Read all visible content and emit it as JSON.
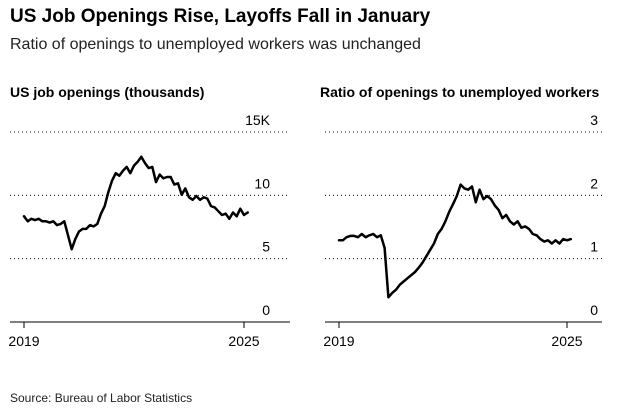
{
  "title": "US Job Openings Rise, Layoffs Fall in January",
  "subtitle": "Ratio of openings to unemployed workers was unchanged",
  "source": "Source: Bureau of Labor Statistics",
  "colors": {
    "line": "#000000",
    "grid": "#000000",
    "axis": "#000000",
    "background": "#ffffff"
  },
  "chart_data": [
    {
      "type": "line",
      "title": "US job openings (thousands)",
      "xlabel": "",
      "ylabel": "",
      "x_tick_labels": [
        "2019",
        "2025"
      ],
      "y_tick_labels": [
        "15K",
        "10",
        "5",
        "0"
      ],
      "y_ticks": [
        15,
        10,
        5,
        0
      ],
      "xlim": [
        2019.0,
        2025.3
      ],
      "ylim": [
        0,
        15
      ],
      "grid": true,
      "series": [
        {
          "values": [
            [
              2019.0,
              7.4
            ],
            [
              2019.1,
              7.0
            ],
            [
              2019.2,
              7.2
            ],
            [
              2019.3,
              7.1
            ],
            [
              2019.4,
              7.2
            ],
            [
              2019.5,
              7.0
            ],
            [
              2019.6,
              7.0
            ],
            [
              2019.7,
              6.9
            ],
            [
              2019.8,
              7.0
            ],
            [
              2019.9,
              6.7
            ],
            [
              2020.0,
              6.8
            ],
            [
              2020.1,
              7.0
            ],
            [
              2020.2,
              5.9
            ],
            [
              2020.3,
              4.8
            ],
            [
              2020.4,
              5.6
            ],
            [
              2020.5,
              6.2
            ],
            [
              2020.6,
              6.4
            ],
            [
              2020.7,
              6.4
            ],
            [
              2020.8,
              6.7
            ],
            [
              2020.9,
              6.6
            ],
            [
              2021.0,
              6.8
            ],
            [
              2021.1,
              7.6
            ],
            [
              2021.2,
              8.2
            ],
            [
              2021.3,
              9.3
            ],
            [
              2021.4,
              10.2
            ],
            [
              2021.5,
              10.8
            ],
            [
              2021.6,
              10.6
            ],
            [
              2021.7,
              11.0
            ],
            [
              2021.8,
              11.3
            ],
            [
              2021.9,
              10.8
            ],
            [
              2022.0,
              11.4
            ],
            [
              2022.1,
              11.7
            ],
            [
              2022.2,
              12.1
            ],
            [
              2022.3,
              11.6
            ],
            [
              2022.4,
              11.2
            ],
            [
              2022.5,
              11.3
            ],
            [
              2022.6,
              10.1
            ],
            [
              2022.7,
              10.7
            ],
            [
              2022.8,
              10.4
            ],
            [
              2022.9,
              10.5
            ],
            [
              2023.0,
              10.5
            ],
            [
              2023.1,
              9.9
            ],
            [
              2023.2,
              10.0
            ],
            [
              2023.3,
              9.1
            ],
            [
              2023.4,
              9.6
            ],
            [
              2023.5,
              8.9
            ],
            [
              2023.6,
              8.7
            ],
            [
              2023.7,
              9.0
            ],
            [
              2023.8,
              8.7
            ],
            [
              2023.9,
              8.9
            ],
            [
              2024.0,
              8.8
            ],
            [
              2024.1,
              8.2
            ],
            [
              2024.2,
              8.1
            ],
            [
              2024.3,
              7.8
            ],
            [
              2024.4,
              7.5
            ],
            [
              2024.5,
              7.6
            ],
            [
              2024.6,
              7.2
            ],
            [
              2024.7,
              7.7
            ],
            [
              2024.8,
              7.4
            ],
            [
              2024.9,
              8.0
            ],
            [
              2025.0,
              7.5
            ],
            [
              2025.1,
              7.7
            ]
          ]
        }
      ]
    },
    {
      "type": "line",
      "title": "Ratio of openings to unemployed workers",
      "xlabel": "",
      "ylabel": "",
      "x_tick_labels": [
        "2019",
        "2025"
      ],
      "y_tick_labels": [
        "3",
        "2",
        "1",
        "0"
      ],
      "y_ticks": [
        3,
        2,
        1,
        0
      ],
      "xlim": [
        2019.0,
        2025.3
      ],
      "ylim": [
        0,
        3
      ],
      "grid": true,
      "series": [
        {
          "values": [
            [
              2019.0,
              1.1
            ],
            [
              2019.1,
              1.1
            ],
            [
              2019.2,
              1.15
            ],
            [
              2019.3,
              1.17
            ],
            [
              2019.4,
              1.17
            ],
            [
              2019.5,
              1.15
            ],
            [
              2019.6,
              1.2
            ],
            [
              2019.7,
              1.15
            ],
            [
              2019.8,
              1.18
            ],
            [
              2019.9,
              1.2
            ],
            [
              2020.0,
              1.15
            ],
            [
              2020.1,
              1.18
            ],
            [
              2020.2,
              0.98
            ],
            [
              2020.3,
              0.2
            ],
            [
              2020.4,
              0.27
            ],
            [
              2020.5,
              0.32
            ],
            [
              2020.6,
              0.4
            ],
            [
              2020.7,
              0.45
            ],
            [
              2020.8,
              0.5
            ],
            [
              2020.9,
              0.55
            ],
            [
              2021.0,
              0.6
            ],
            [
              2021.1,
              0.67
            ],
            [
              2021.2,
              0.75
            ],
            [
              2021.3,
              0.85
            ],
            [
              2021.4,
              0.95
            ],
            [
              2021.5,
              1.05
            ],
            [
              2021.6,
              1.2
            ],
            [
              2021.7,
              1.28
            ],
            [
              2021.8,
              1.4
            ],
            [
              2021.9,
              1.55
            ],
            [
              2022.0,
              1.67
            ],
            [
              2022.1,
              1.8
            ],
            [
              2022.2,
              1.98
            ],
            [
              2022.3,
              1.92
            ],
            [
              2022.4,
              1.9
            ],
            [
              2022.5,
              1.95
            ],
            [
              2022.6,
              1.7
            ],
            [
              2022.7,
              1.9
            ],
            [
              2022.8,
              1.75
            ],
            [
              2022.9,
              1.8
            ],
            [
              2023.0,
              1.75
            ],
            [
              2023.1,
              1.65
            ],
            [
              2023.2,
              1.58
            ],
            [
              2023.3,
              1.45
            ],
            [
              2023.4,
              1.5
            ],
            [
              2023.5,
              1.4
            ],
            [
              2023.6,
              1.35
            ],
            [
              2023.7,
              1.4
            ],
            [
              2023.8,
              1.3
            ],
            [
              2023.9,
              1.32
            ],
            [
              2024.0,
              1.28
            ],
            [
              2024.1,
              1.2
            ],
            [
              2024.2,
              1.18
            ],
            [
              2024.3,
              1.12
            ],
            [
              2024.4,
              1.08
            ],
            [
              2024.5,
              1.1
            ],
            [
              2024.6,
              1.05
            ],
            [
              2024.7,
              1.1
            ],
            [
              2024.8,
              1.05
            ],
            [
              2024.9,
              1.12
            ],
            [
              2025.0,
              1.1
            ],
            [
              2025.1,
              1.12
            ]
          ]
        }
      ]
    }
  ]
}
